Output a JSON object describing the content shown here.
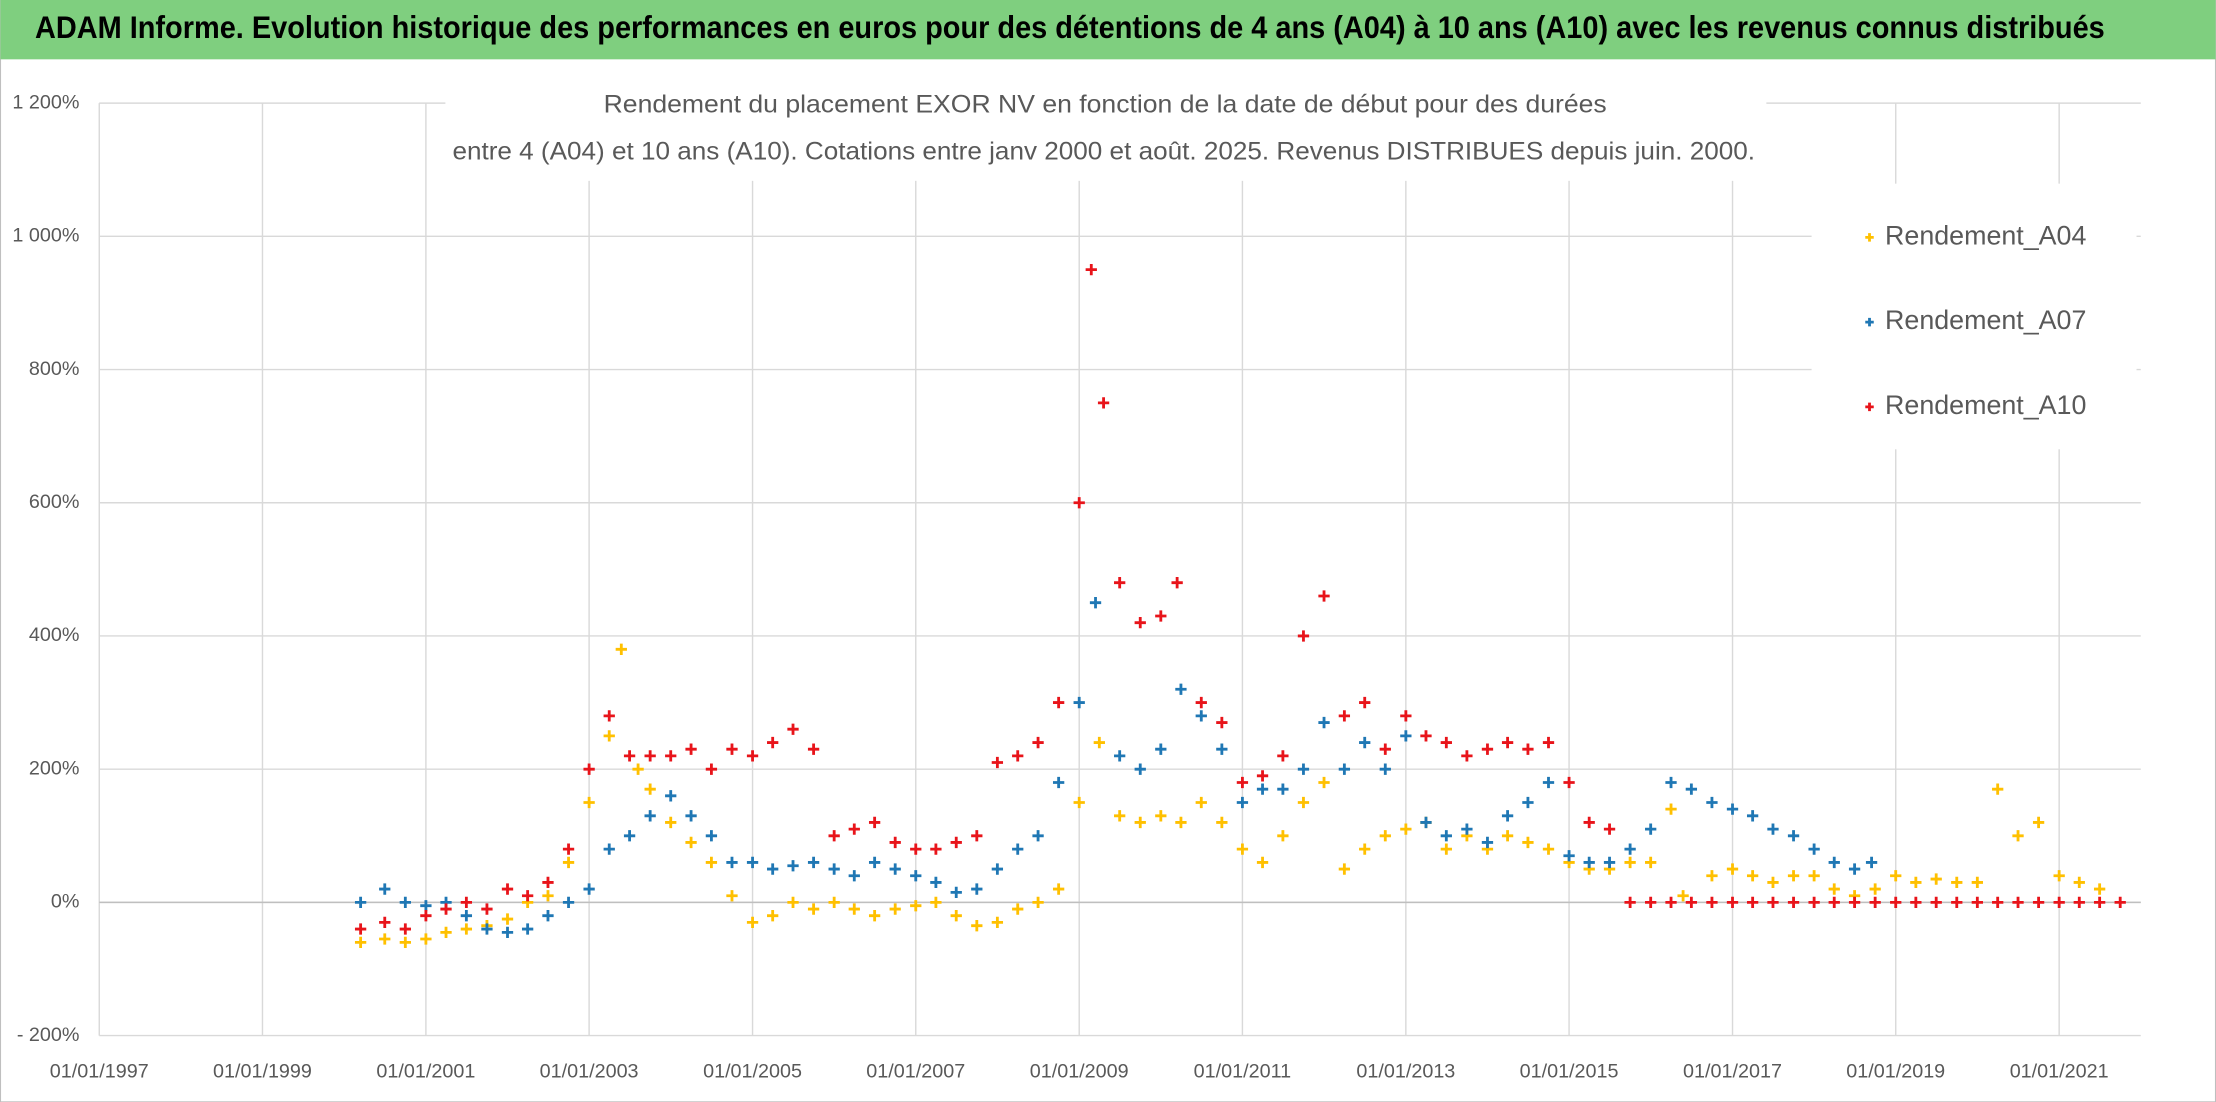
{
  "chart_data": {
    "type": "scatter",
    "banner": "ADAM Informe. Evolution historique des performances en euros pour des détentions de 4 ans (A04) à 10 ans (A10) avec les revenus connus distribués",
    "title": "Rendement du placement EXOR NV en fonction de la date de début pour des durées",
    "subtitle": "entre 4 (A04) et 10 ans (A10). Cotations entre janv 2000 et août. 2025. Revenus DISTRIBUES depuis juin. 2000.",
    "xlim": [
      "1997-01-01",
      "2022-01-01"
    ],
    "xticks": [
      {
        "value": "1997-01-01",
        "label": "01/01/1997"
      },
      {
        "value": "1999-01-01",
        "label": "01/01/1999"
      },
      {
        "value": "2001-01-01",
        "label": "01/01/2001"
      },
      {
        "value": "2003-01-01",
        "label": "01/01/2003"
      },
      {
        "value": "2005-01-01",
        "label": "01/01/2005"
      },
      {
        "value": "2007-01-01",
        "label": "01/01/2007"
      },
      {
        "value": "2009-01-01",
        "label": "01/01/2009"
      },
      {
        "value": "2011-01-01",
        "label": "01/01/2011"
      },
      {
        "value": "2013-01-01",
        "label": "01/01/2013"
      },
      {
        "value": "2015-01-01",
        "label": "01/01/2015"
      },
      {
        "value": "2017-01-01",
        "label": "01/01/2017"
      },
      {
        "value": "2019-01-01",
        "label": "01/01/2019"
      },
      {
        "value": "2021-01-01",
        "label": "01/01/2021"
      }
    ],
    "ylim": [
      -200,
      1200
    ],
    "yticks": [
      {
        "value": -200,
        "label": "- 200%"
      },
      {
        "value": 0,
        "label": "0%"
      },
      {
        "value": 200,
        "label": "200%"
      },
      {
        "value": 400,
        "label": "400%"
      },
      {
        "value": 600,
        "label": "600%"
      },
      {
        "value": 800,
        "label": "800%"
      },
      {
        "value": 1000,
        "label": "1 000%"
      },
      {
        "value": 1200,
        "label": "1 200%"
      }
    ],
    "grid": true,
    "legend_position": "right",
    "series": [
      {
        "name": "Rendement_A04",
        "color": "#ffc000",
        "x": [
          "2000-03-15",
          "2000-07-01",
          "2000-10-01",
          "2001-01-01",
          "2001-04-01",
          "2001-07-01",
          "2001-10-01",
          "2002-01-01",
          "2002-04-01",
          "2002-07-01",
          "2002-10-01",
          "2003-01-01",
          "2003-04-01",
          "2003-05-25",
          "2003-08-08",
          "2003-10-01",
          "2004-01-01",
          "2004-04-01",
          "2004-07-01",
          "2004-10-01",
          "2005-01-01",
          "2005-04-01",
          "2005-07-01",
          "2005-10-01",
          "2006-01-01",
          "2006-04-01",
          "2006-07-01",
          "2006-10-01",
          "2007-01-01",
          "2007-04-01",
          "2007-07-01",
          "2007-10-01",
          "2008-01-01",
          "2008-04-01",
          "2008-07-01",
          "2008-10-01",
          "2009-01-01",
          "2009-04-01",
          "2009-07-01",
          "2009-10-01",
          "2010-01-01",
          "2010-04-01",
          "2010-07-01",
          "2010-10-01",
          "2011-01-01",
          "2011-04-01",
          "2011-07-01",
          "2011-10-01",
          "2012-01-01",
          "2012-04-01",
          "2012-07-01",
          "2012-10-01",
          "2013-01-01",
          "2013-04-01",
          "2013-07-01",
          "2013-10-01",
          "2014-01-01",
          "2014-04-01",
          "2014-07-01",
          "2014-10-01",
          "2015-01-01",
          "2015-04-01",
          "2015-07-01",
          "2015-10-01",
          "2016-01-01",
          "2016-04-01",
          "2016-05-25",
          "2016-10-01",
          "2017-01-01",
          "2017-04-01",
          "2017-07-01",
          "2017-10-01",
          "2018-01-01",
          "2018-04-01",
          "2018-07-01",
          "2018-10-01",
          "2019-01-01",
          "2019-04-01",
          "2019-07-01",
          "2019-10-01",
          "2020-01-01",
          "2020-04-01",
          "2020-07-01",
          "2020-10-01",
          "2021-01-01",
          "2021-04-01",
          "2021-07-01"
        ],
        "values": [
          -60,
          -55,
          -60,
          -55,
          -45,
          -40,
          -35,
          -25,
          0,
          10,
          60,
          150,
          250,
          380,
          200,
          170,
          120,
          90,
          60,
          10,
          -30,
          -20,
          0,
          -10,
          0,
          -10,
          -20,
          -10,
          -5,
          0,
          -20,
          -35,
          -30,
          -10,
          0,
          20,
          150,
          240,
          130,
          120,
          130,
          120,
          150,
          120,
          80,
          60,
          100,
          150,
          180,
          50,
          80,
          100,
          110,
          120,
          80,
          100,
          80,
          100,
          90,
          80,
          60,
          50,
          50,
          60,
          60,
          140,
          10,
          40,
          50,
          40,
          30,
          40,
          40,
          20,
          10,
          20,
          40,
          30,
          35,
          30,
          30,
          170,
          100,
          120,
          40,
          30,
          20
        ]
      },
      {
        "name": "Rendement_A07",
        "color": "#1f77b4",
        "x": [
          "2000-03-15",
          "2000-07-01",
          "2000-10-01",
          "2001-01-01",
          "2001-04-01",
          "2001-07-01",
          "2001-10-01",
          "2002-01-01",
          "2002-04-01",
          "2002-07-01",
          "2002-10-01",
          "2003-01-01",
          "2003-04-01",
          "2003-07-01",
          "2003-10-01",
          "2004-01-01",
          "2004-04-01",
          "2004-07-01",
          "2004-10-01",
          "2005-01-01",
          "2005-04-01",
          "2005-07-01",
          "2005-10-01",
          "2006-01-01",
          "2006-04-01",
          "2006-07-01",
          "2006-10-01",
          "2007-01-01",
          "2007-04-01",
          "2007-07-01",
          "2007-10-01",
          "2008-01-01",
          "2008-04-01",
          "2008-07-01",
          "2008-10-01",
          "2009-01-01",
          "2009-03-15",
          "2009-07-01",
          "2009-10-01",
          "2010-01-01",
          "2010-04-01",
          "2010-07-01",
          "2010-10-01",
          "2011-01-01",
          "2011-04-01",
          "2011-07-01",
          "2011-10-01",
          "2012-01-01",
          "2012-04-01",
          "2012-07-01",
          "2012-10-01",
          "2013-01-01",
          "2013-04-01",
          "2013-07-01",
          "2013-10-01",
          "2014-01-01",
          "2014-04-01",
          "2014-07-01",
          "2014-10-01",
          "2015-01-01",
          "2015-04-01",
          "2015-07-01",
          "2015-10-01",
          "2016-01-01",
          "2016-04-01",
          "2016-07-01",
          "2016-10-01",
          "2017-01-01",
          "2017-04-01",
          "2017-07-01",
          "2017-10-01",
          "2018-01-01",
          "2018-04-01",
          "2018-07-01",
          "2018-09-15"
        ],
        "values": [
          0,
          20,
          0,
          -5,
          0,
          -20,
          -40,
          -45,
          -40,
          -20,
          0,
          20,
          80,
          100,
          130,
          160,
          130,
          100,
          60,
          60,
          50,
          55,
          60,
          50,
          40,
          60,
          50,
          40,
          30,
          15,
          20,
          50,
          80,
          100,
          180,
          300,
          450,
          220,
          200,
          230,
          320,
          280,
          230,
          150,
          170,
          170,
          200,
          270,
          200,
          240,
          200,
          250,
          120,
          100,
          110,
          90,
          130,
          150,
          180,
          70,
          60,
          60,
          80,
          110,
          180,
          170,
          150,
          140,
          130,
          110,
          100,
          80,
          60,
          50,
          60
        ]
      },
      {
        "name": "Rendement_A10",
        "color": "#e8141a",
        "x": [
          "2000-03-15",
          "2000-07-01",
          "2000-10-01",
          "2001-01-01",
          "2001-04-01",
          "2001-07-01",
          "2001-10-01",
          "2002-01-01",
          "2002-04-01",
          "2002-07-01",
          "2002-10-01",
          "2003-01-01",
          "2003-04-01",
          "2003-07-01",
          "2003-10-01",
          "2004-01-01",
          "2004-04-01",
          "2004-07-01",
          "2004-10-01",
          "2005-01-01",
          "2005-04-01",
          "2005-07-01",
          "2005-10-01",
          "2006-01-01",
          "2006-04-01",
          "2006-07-01",
          "2006-10-01",
          "2007-01-01",
          "2007-04-01",
          "2007-07-01",
          "2007-10-01",
          "2008-01-01",
          "2008-04-01",
          "2008-07-01",
          "2008-10-01",
          "2009-01-01",
          "2009-02-24",
          "2009-04-20",
          "2009-07-01",
          "2009-10-01",
          "2010-01-01",
          "2010-03-15",
          "2010-07-01",
          "2010-10-01",
          "2011-01-01",
          "2011-04-01",
          "2011-07-01",
          "2011-10-01",
          "2012-01-01",
          "2012-04-01",
          "2012-07-01",
          "2012-10-01",
          "2013-01-01",
          "2013-04-01",
          "2013-07-01",
          "2013-10-01",
          "2014-01-01",
          "2014-04-01",
          "2014-07-01",
          "2014-10-01",
          "2015-01-01",
          "2015-04-01",
          "2015-07-01",
          "2015-10-01",
          "2016-01-01",
          "2016-04-01",
          "2016-07-01",
          "2016-10-01",
          "2017-01-01",
          "2017-04-01",
          "2017-07-01",
          "2017-10-01",
          "2018-01-01",
          "2018-04-01",
          "2018-07-01",
          "2018-10-01",
          "2019-01-01",
          "2019-04-01",
          "2019-07-01",
          "2019-10-01",
          "2020-01-01",
          "2020-04-01",
          "2020-07-01",
          "2020-10-01",
          "2021-01-01",
          "2021-04-01",
          "2021-07-01",
          "2021-10-01"
        ],
        "values": [
          -40,
          -30,
          -40,
          -20,
          -10,
          0,
          -10,
          20,
          10,
          30,
          80,
          200,
          280,
          220,
          220,
          220,
          230,
          200,
          230,
          220,
          240,
          260,
          230,
          100,
          110,
          120,
          90,
          80,
          80,
          90,
          100,
          210,
          220,
          240,
          300,
          600,
          950,
          750,
          480,
          420,
          430,
          480,
          300,
          270,
          180,
          190,
          220,
          400,
          460,
          280,
          300,
          230,
          280,
          250,
          240,
          220,
          230,
          240,
          230,
          240,
          180,
          120,
          110,
          0,
          0,
          0,
          0,
          0,
          0,
          0,
          0,
          0,
          0,
          0,
          0,
          0,
          0,
          0,
          0,
          0,
          0,
          0,
          0,
          0,
          0,
          0,
          0,
          0
        ]
      }
    ]
  }
}
